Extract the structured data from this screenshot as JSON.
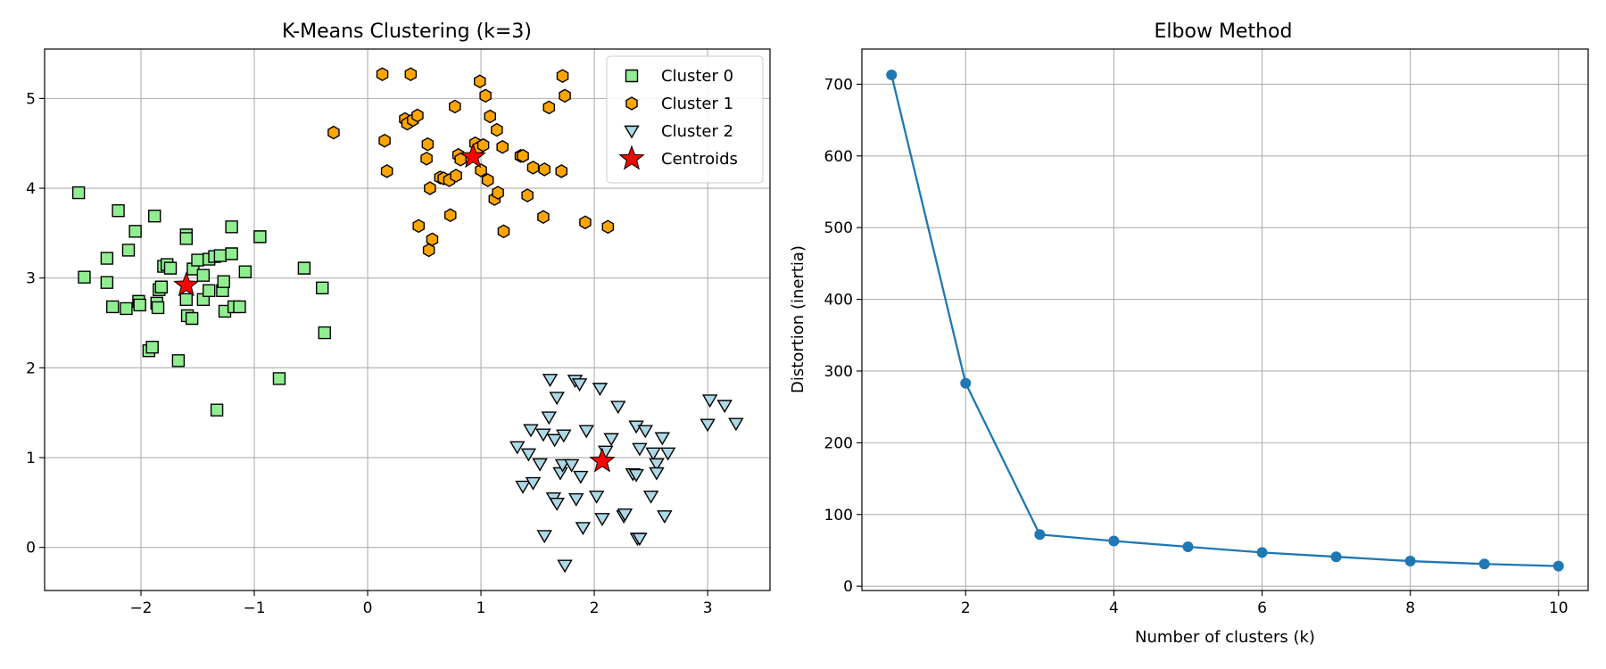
{
  "chart_data": [
    {
      "type": "scatter",
      "title": "K-Means Clustering (k=3)",
      "xlabel": "",
      "ylabel": "",
      "xlim": [
        -2.85,
        3.55
      ],
      "ylim": [
        -0.48,
        5.55
      ],
      "xticks": [
        -2,
        -1,
        0,
        1,
        2,
        3
      ],
      "yticks": [
        0,
        1,
        2,
        3,
        4,
        5
      ],
      "xtick_labels": [
        "−2",
        "−1",
        "0",
        "1",
        "2",
        "3"
      ],
      "ytick_labels": [
        "0",
        "1",
        "2",
        "3",
        "4",
        "5"
      ],
      "grid": true,
      "legend_position": "top-right",
      "series": [
        {
          "name": "Cluster 0",
          "marker": "square",
          "color": "#90ee90",
          "points": [
            [
              -2.55,
              3.95
            ],
            [
              -2.5,
              3.01
            ],
            [
              -2.3,
              3.22
            ],
            [
              -2.3,
              2.95
            ],
            [
              -2.25,
              2.68
            ],
            [
              -2.2,
              3.75
            ],
            [
              -2.13,
              2.66
            ],
            [
              -2.11,
              3.31
            ],
            [
              -2.05,
              3.52
            ],
            [
              -2.02,
              2.74
            ],
            [
              -2.01,
              2.7
            ],
            [
              -1.93,
              2.19
            ],
            [
              -1.9,
              2.23
            ],
            [
              -1.88,
              3.69
            ],
            [
              -1.86,
              2.72
            ],
            [
              -1.85,
              2.67
            ],
            [
              -1.84,
              2.87
            ],
            [
              -1.82,
              2.9
            ],
            [
              -1.8,
              3.13
            ],
            [
              -1.77,
              3.15
            ],
            [
              -1.74,
              3.11
            ],
            [
              -1.67,
              2.08
            ],
            [
              -1.6,
              3.48
            ],
            [
              -1.6,
              3.44
            ],
            [
              -1.6,
              2.76
            ],
            [
              -1.59,
              2.58
            ],
            [
              -1.55,
              2.55
            ],
            [
              -1.54,
              3.1
            ],
            [
              -1.5,
              3.2
            ],
            [
              -1.45,
              3.03
            ],
            [
              -1.45,
              2.76
            ],
            [
              -1.4,
              3.21
            ],
            [
              -1.4,
              2.86
            ],
            [
              -1.35,
              3.24
            ],
            [
              -1.33,
              1.53
            ],
            [
              -1.3,
              3.25
            ],
            [
              -1.28,
              2.86
            ],
            [
              -1.27,
              2.96
            ],
            [
              -1.26,
              2.63
            ],
            [
              -1.2,
              3.27
            ],
            [
              -1.2,
              3.57
            ],
            [
              -1.18,
              2.68
            ],
            [
              -1.13,
              2.68
            ],
            [
              -1.08,
              3.07
            ],
            [
              -0.95,
              3.46
            ],
            [
              -0.78,
              1.88
            ],
            [
              -0.56,
              3.11
            ],
            [
              -0.4,
              2.89
            ],
            [
              -0.38,
              2.39
            ]
          ]
        },
        {
          "name": "Cluster 1",
          "marker": "hexagon",
          "color": "#ffa500",
          "points": [
            [
              -0.3,
              4.62
            ],
            [
              0.13,
              5.27
            ],
            [
              0.15,
              4.53
            ],
            [
              0.17,
              4.19
            ],
            [
              0.33,
              4.77
            ],
            [
              0.35,
              4.72
            ],
            [
              0.38,
              5.27
            ],
            [
              0.4,
              4.76
            ],
            [
              0.44,
              4.81
            ],
            [
              0.45,
              3.58
            ],
            [
              0.52,
              4.33
            ],
            [
              0.53,
              4.49
            ],
            [
              0.54,
              3.31
            ],
            [
              0.55,
              4.0
            ],
            [
              0.57,
              3.43
            ],
            [
              0.64,
              4.12
            ],
            [
              0.67,
              4.11
            ],
            [
              0.72,
              4.09
            ],
            [
              0.73,
              3.7
            ],
            [
              0.77,
              4.91
            ],
            [
              0.78,
              4.14
            ],
            [
              0.8,
              4.37
            ],
            [
              0.82,
              4.32
            ],
            [
              0.95,
              4.5
            ],
            [
              0.98,
              4.45
            ],
            [
              0.99,
              5.19
            ],
            [
              1.0,
              4.2
            ],
            [
              1.02,
              4.48
            ],
            [
              1.04,
              5.03
            ],
            [
              1.06,
              4.09
            ],
            [
              1.08,
              4.8
            ],
            [
              1.12,
              3.88
            ],
            [
              1.14,
              4.65
            ],
            [
              1.15,
              3.95
            ],
            [
              1.19,
              4.46
            ],
            [
              1.2,
              3.52
            ],
            [
              1.35,
              4.36
            ],
            [
              1.37,
              4.36
            ],
            [
              1.41,
              3.92
            ],
            [
              1.46,
              4.23
            ],
            [
              1.55,
              3.68
            ],
            [
              1.56,
              4.21
            ],
            [
              1.6,
              4.9
            ],
            [
              1.71,
              4.19
            ],
            [
              1.72,
              5.25
            ],
            [
              1.74,
              5.03
            ],
            [
              1.92,
              3.62
            ],
            [
              2.12,
              3.57
            ]
          ]
        },
        {
          "name": "Cluster 2",
          "marker": "triangle-down",
          "color": "#add8e6",
          "points": [
            [
              1.32,
              1.12
            ],
            [
              1.37,
              0.68
            ],
            [
              1.42,
              1.04
            ],
            [
              1.44,
              1.31
            ],
            [
              1.46,
              0.72
            ],
            [
              1.52,
              0.93
            ],
            [
              1.55,
              1.26
            ],
            [
              1.56,
              0.13
            ],
            [
              1.6,
              1.45
            ],
            [
              1.61,
              1.87
            ],
            [
              1.64,
              0.55
            ],
            [
              1.65,
              1.2
            ],
            [
              1.67,
              1.67
            ],
            [
              1.67,
              0.49
            ],
            [
              1.7,
              0.83
            ],
            [
              1.72,
              0.92
            ],
            [
              1.73,
              1.25
            ],
            [
              1.74,
              -0.2
            ],
            [
              1.8,
              0.92
            ],
            [
              1.83,
              1.86
            ],
            [
              1.84,
              0.54
            ],
            [
              1.87,
              1.82
            ],
            [
              1.88,
              0.79
            ],
            [
              1.9,
              0.22
            ],
            [
              1.93,
              1.3
            ],
            [
              2.02,
              0.57
            ],
            [
              2.05,
              1.77
            ],
            [
              2.07,
              0.32
            ],
            [
              2.1,
              1.07
            ],
            [
              2.15,
              1.21
            ],
            [
              2.21,
              1.57
            ],
            [
              2.26,
              0.35
            ],
            [
              2.27,
              0.37
            ],
            [
              2.34,
              0.82
            ],
            [
              2.37,
              0.81
            ],
            [
              2.37,
              1.35
            ],
            [
              2.38,
              0.1
            ],
            [
              2.4,
              0.1
            ],
            [
              2.4,
              1.1
            ],
            [
              2.45,
              1.3
            ],
            [
              2.5,
              0.57
            ],
            [
              2.52,
              1.05
            ],
            [
              2.55,
              0.93
            ],
            [
              2.55,
              0.83
            ],
            [
              2.6,
              1.22
            ],
            [
              2.62,
              0.35
            ],
            [
              2.65,
              1.05
            ],
            [
              3.0,
              1.37
            ],
            [
              3.02,
              1.64
            ],
            [
              3.15,
              1.58
            ],
            [
              3.25,
              1.38
            ]
          ]
        },
        {
          "name": "Centroids",
          "marker": "star",
          "color": "#ff0000",
          "points": [
            [
              -1.6,
              2.92
            ],
            [
              0.93,
              4.35
            ],
            [
              2.07,
              0.96
            ]
          ]
        }
      ]
    },
    {
      "type": "line",
      "title": "Elbow Method",
      "xlabel": "Number of clusters (k)",
      "ylabel": "Distortion (inertia)",
      "xlim": [
        0.6,
        10.4
      ],
      "ylim": [
        -6,
        749
      ],
      "xticks": [
        2,
        4,
        6,
        8,
        10
      ],
      "yticks": [
        0,
        100,
        200,
        300,
        400,
        500,
        600,
        700
      ],
      "grid": true,
      "color": "#1f77b4",
      "x": [
        1,
        2,
        3,
        4,
        5,
        6,
        7,
        8,
        9,
        10
      ],
      "y": [
        713,
        283,
        72,
        63,
        55,
        47,
        41,
        35,
        31,
        28
      ]
    }
  ]
}
